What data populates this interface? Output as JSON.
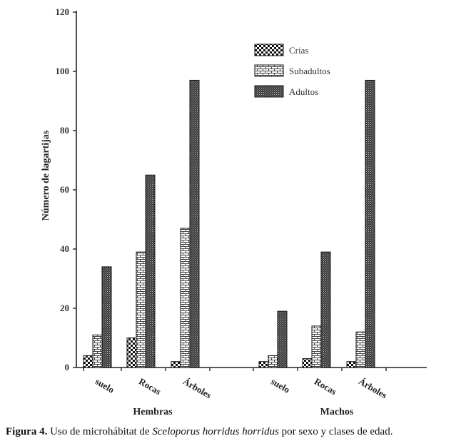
{
  "chart_data": {
    "type": "bar",
    "title": "",
    "ylabel": "Número de lagartijas",
    "ylim": [
      0,
      120
    ],
    "yticks": [
      0,
      20,
      40,
      60,
      80,
      100,
      120
    ],
    "groups": [
      {
        "name": "Hembras",
        "categories": [
          "suelo",
          "Rocas",
          "Árboles"
        ]
      },
      {
        "name": "Machos",
        "categories": [
          "suelo",
          "Rocas",
          "Árboles"
        ]
      }
    ],
    "series": [
      {
        "name": "Crias",
        "pattern": "checker",
        "values": [
          4,
          10,
          2,
          2,
          3,
          2
        ]
      },
      {
        "name": "Subadultos",
        "pattern": "brick",
        "values": [
          11,
          39,
          47,
          4,
          14,
          12
        ]
      },
      {
        "name": "Adultos",
        "pattern": "dense-dots",
        "values": [
          34,
          65,
          97,
          19,
          39,
          97
        ]
      }
    ],
    "legend_position": "top-right",
    "grid": false
  },
  "caption": {
    "label": "Figura 4.",
    "text_before": " Uso de microhábitat de ",
    "species": "Sceloporus horridus horridus",
    "text_after": " por sexo y clases de edad."
  }
}
